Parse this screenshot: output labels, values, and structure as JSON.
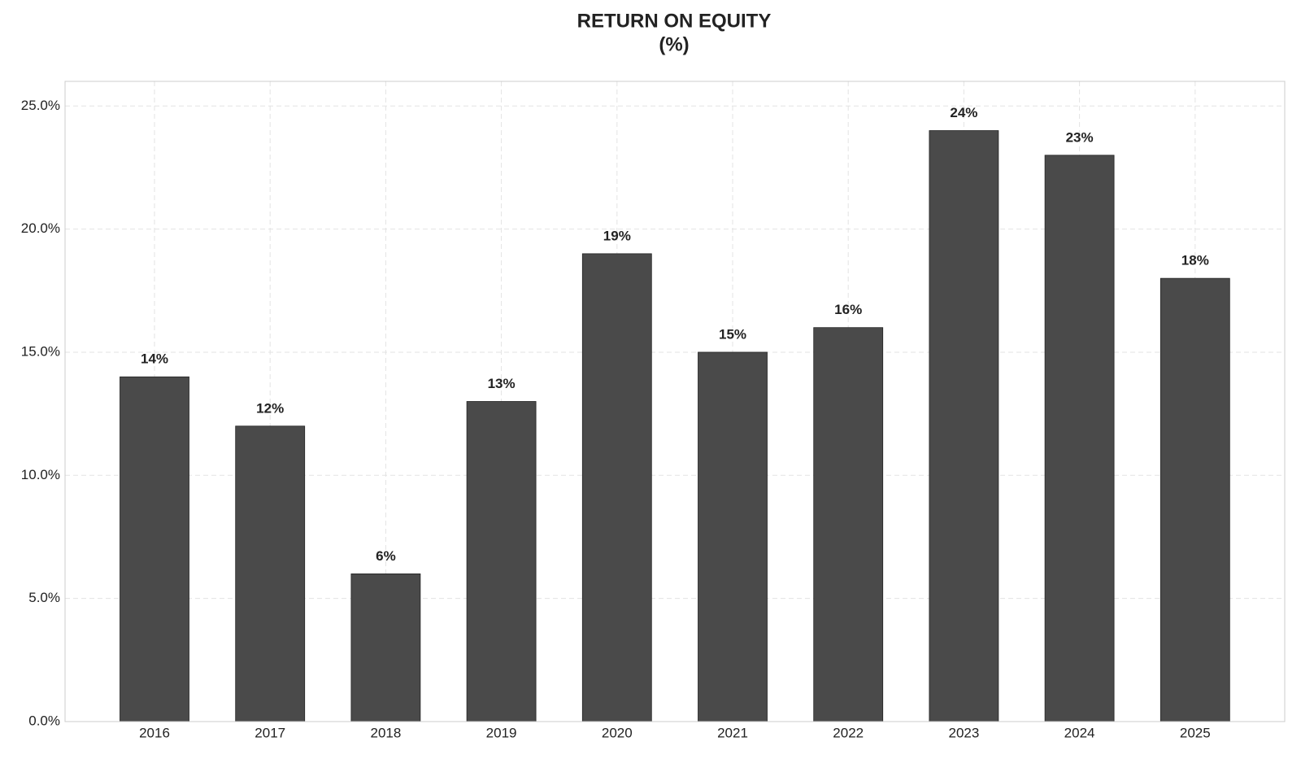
{
  "chart_data": {
    "type": "bar",
    "title": "RETURN ON EQUITY",
    "subtitle": "(%)",
    "categories": [
      "2016",
      "2017",
      "2018",
      "2019",
      "2020",
      "2021",
      "2022",
      "2023",
      "2024",
      "2025"
    ],
    "values": [
      14,
      12,
      6,
      13,
      19,
      15,
      16,
      24,
      23,
      18
    ],
    "value_labels": [
      "14%",
      "12%",
      "6%",
      "13%",
      "19%",
      "15%",
      "16%",
      "24%",
      "23%",
      "18%"
    ],
    "color": "#4a4a4a",
    "ylim": [
      0,
      26
    ],
    "yticks": [
      {
        "value": 0,
        "label": "0.0%"
      },
      {
        "value": 5,
        "label": "5.0%"
      },
      {
        "value": 10,
        "label": "10.0%"
      },
      {
        "value": 15,
        "label": "15.0%"
      },
      {
        "value": 20,
        "label": "20.0%"
      },
      {
        "value": 25,
        "label": "25.0%"
      }
    ],
    "grid": true
  }
}
